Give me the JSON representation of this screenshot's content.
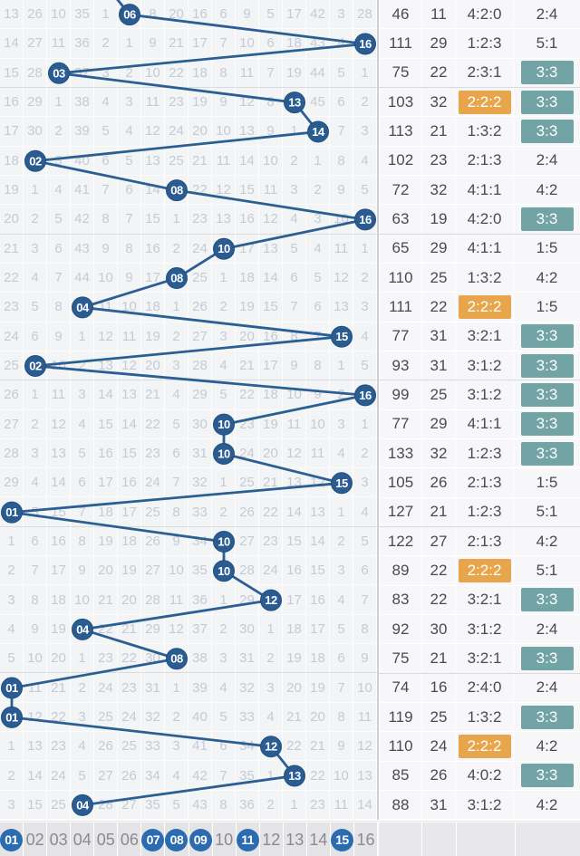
{
  "colors": {
    "line_blue": "#2b5f94",
    "circle_fill": "#2a5c92",
    "circle_stroke": "#1e4f7f",
    "legend_ball_blue": "#2b6cb0",
    "orange_hl": "#e7a64b",
    "teal_hl": "#72a3a5"
  },
  "chart_data": {
    "type": "table",
    "title": "lottery-trend-chart",
    "columns": [
      "01",
      "02",
      "03",
      "04",
      "05",
      "06",
      "07",
      "08",
      "09",
      "10",
      "11",
      "12",
      "13",
      "14",
      "15",
      "16"
    ],
    "prev_drawn_col": 5,
    "group_breaks": [
      3,
      8,
      13,
      18,
      23
    ],
    "rows": [
      {
        "ball": "06",
        "drawn_col": 6,
        "miss": [
          "13",
          "26",
          "10",
          "35",
          "1",
          "",
          "8",
          "20",
          "16",
          "6",
          "9",
          "5",
          "17",
          "42",
          "3",
          "28"
        ]
      },
      {
        "ball": "16",
        "drawn_col": 16,
        "miss": [
          "14",
          "27",
          "11",
          "36",
          "2",
          "1",
          "9",
          "21",
          "17",
          "7",
          "10",
          "6",
          "18",
          "43",
          "4",
          ""
        ]
      },
      {
        "ball": "03",
        "drawn_col": 3,
        "miss": [
          "15",
          "28",
          "",
          "37",
          "3",
          "2",
          "10",
          "22",
          "18",
          "8",
          "11",
          "7",
          "19",
          "44",
          "5",
          "1"
        ]
      },
      {
        "ball": "13",
        "drawn_col": 13,
        "miss": [
          "16",
          "29",
          "1",
          "38",
          "4",
          "3",
          "11",
          "23",
          "19",
          "9",
          "12",
          "8",
          "",
          "45",
          "6",
          "2"
        ]
      },
      {
        "ball": "14",
        "drawn_col": 14,
        "miss": [
          "17",
          "30",
          "2",
          "39",
          "5",
          "4",
          "12",
          "24",
          "20",
          "10",
          "13",
          "9",
          "1",
          "",
          "7",
          "3"
        ]
      },
      {
        "ball": "02",
        "drawn_col": 2,
        "miss": [
          "18",
          "",
          "3",
          "40",
          "6",
          "5",
          "13",
          "25",
          "21",
          "11",
          "14",
          "10",
          "2",
          "1",
          "8",
          "4"
        ]
      },
      {
        "ball": "08",
        "drawn_col": 8,
        "miss": [
          "19",
          "1",
          "4",
          "41",
          "7",
          "6",
          "14",
          "",
          "22",
          "12",
          "15",
          "11",
          "3",
          "2",
          "9",
          "5"
        ]
      },
      {
        "ball": "16",
        "drawn_col": 16,
        "miss": [
          "20",
          "2",
          "5",
          "42",
          "8",
          "7",
          "15",
          "1",
          "23",
          "13",
          "16",
          "12",
          "4",
          "3",
          "10",
          ""
        ]
      },
      {
        "ball": "10",
        "drawn_col": 10,
        "miss": [
          "21",
          "3",
          "6",
          "43",
          "9",
          "8",
          "16",
          "2",
          "24",
          "",
          "17",
          "13",
          "5",
          "4",
          "11",
          "1"
        ]
      },
      {
        "ball": "08",
        "drawn_col": 8,
        "miss": [
          "22",
          "4",
          "7",
          "44",
          "10",
          "9",
          "17",
          "",
          "25",
          "1",
          "18",
          "14",
          "6",
          "5",
          "12",
          "2"
        ]
      },
      {
        "ball": "04",
        "drawn_col": 4,
        "miss": [
          "23",
          "5",
          "8",
          "",
          "11",
          "10",
          "18",
          "1",
          "26",
          "2",
          "19",
          "15",
          "7",
          "6",
          "13",
          "3"
        ]
      },
      {
        "ball": "15",
        "drawn_col": 15,
        "miss": [
          "24",
          "6",
          "9",
          "1",
          "12",
          "11",
          "19",
          "2",
          "27",
          "3",
          "20",
          "16",
          "8",
          "7",
          "",
          "4"
        ]
      },
      {
        "ball": "02",
        "drawn_col": 2,
        "miss": [
          "25",
          "",
          "10",
          "2",
          "13",
          "12",
          "20",
          "3",
          "28",
          "4",
          "21",
          "17",
          "9",
          "8",
          "1",
          "5"
        ]
      },
      {
        "ball": "16",
        "drawn_col": 16,
        "miss": [
          "26",
          "1",
          "11",
          "3",
          "14",
          "13",
          "21",
          "4",
          "29",
          "5",
          "22",
          "18",
          "10",
          "9",
          "2",
          ""
        ]
      },
      {
        "ball": "10",
        "drawn_col": 10,
        "miss": [
          "27",
          "2",
          "12",
          "4",
          "15",
          "14",
          "22",
          "5",
          "30",
          "",
          "23",
          "19",
          "11",
          "10",
          "3",
          "1"
        ]
      },
      {
        "ball": "10",
        "drawn_col": 10,
        "miss": [
          "28",
          "3",
          "13",
          "5",
          "16",
          "15",
          "23",
          "6",
          "31",
          "",
          "24",
          "20",
          "12",
          "11",
          "4",
          "2"
        ]
      },
      {
        "ball": "15",
        "drawn_col": 15,
        "miss": [
          "29",
          "4",
          "14",
          "6",
          "17",
          "16",
          "24",
          "7",
          "32",
          "1",
          "25",
          "21",
          "13",
          "12",
          "",
          "3"
        ]
      },
      {
        "ball": "01",
        "drawn_col": 1,
        "miss": [
          "",
          "5",
          "15",
          "7",
          "18",
          "17",
          "25",
          "8",
          "33",
          "2",
          "26",
          "22",
          "14",
          "13",
          "1",
          "4"
        ]
      },
      {
        "ball": "10",
        "drawn_col": 10,
        "miss": [
          "1",
          "6",
          "16",
          "8",
          "19",
          "18",
          "26",
          "9",
          "34",
          "",
          "27",
          "23",
          "15",
          "14",
          "2",
          "5"
        ]
      },
      {
        "ball": "10",
        "drawn_col": 10,
        "miss": [
          "2",
          "7",
          "17",
          "9",
          "20",
          "19",
          "27",
          "10",
          "35",
          "",
          "28",
          "24",
          "16",
          "15",
          "3",
          "6"
        ]
      },
      {
        "ball": "12",
        "drawn_col": 12,
        "miss": [
          "3",
          "8",
          "18",
          "10",
          "21",
          "20",
          "28",
          "11",
          "36",
          "1",
          "29",
          "",
          "17",
          "16",
          "4",
          "7"
        ]
      },
      {
        "ball": "04",
        "drawn_col": 4,
        "miss": [
          "4",
          "9",
          "19",
          "",
          "22",
          "21",
          "29",
          "12",
          "37",
          "2",
          "30",
          "1",
          "18",
          "17",
          "5",
          "8"
        ]
      },
      {
        "ball": "08",
        "drawn_col": 8,
        "miss": [
          "5",
          "10",
          "20",
          "1",
          "23",
          "22",
          "30",
          "",
          "38",
          "3",
          "31",
          "2",
          "19",
          "18",
          "6",
          "9"
        ]
      },
      {
        "ball": "01",
        "drawn_col": 1,
        "miss": [
          "",
          "11",
          "21",
          "2",
          "24",
          "23",
          "31",
          "1",
          "39",
          "4",
          "32",
          "3",
          "20",
          "19",
          "7",
          "10"
        ]
      },
      {
        "ball": "01",
        "drawn_col": 1,
        "miss": [
          "",
          "12",
          "22",
          "3",
          "25",
          "24",
          "32",
          "2",
          "40",
          "5",
          "33",
          "4",
          "21",
          "20",
          "8",
          "11"
        ]
      },
      {
        "ball": "12",
        "drawn_col": 12,
        "miss": [
          "1",
          "13",
          "23",
          "4",
          "26",
          "25",
          "33",
          "3",
          "41",
          "6",
          "34",
          "",
          "22",
          "21",
          "9",
          "12"
        ]
      },
      {
        "ball": "13",
        "drawn_col": 13,
        "miss": [
          "2",
          "14",
          "24",
          "5",
          "27",
          "26",
          "34",
          "4",
          "42",
          "7",
          "35",
          "1",
          "",
          "22",
          "10",
          "13"
        ]
      },
      {
        "ball": "04",
        "drawn_col": 4,
        "miss": [
          "3",
          "15",
          "25",
          "",
          "28",
          "27",
          "35",
          "5",
          "43",
          "8",
          "36",
          "2",
          "1",
          "23",
          "11",
          "14"
        ]
      }
    ],
    "stats_rows": [
      {
        "sum": "46",
        "span": "11",
        "zone": "4:2:0",
        "oe": "2:4",
        "zone_hl": false,
        "oe_hl": false
      },
      {
        "sum": "111",
        "span": "29",
        "zone": "1:2:3",
        "oe": "5:1",
        "zone_hl": false,
        "oe_hl": false
      },
      {
        "sum": "75",
        "span": "22",
        "zone": "2:3:1",
        "oe": "3:3",
        "zone_hl": false,
        "oe_hl": true
      },
      {
        "sum": "103",
        "span": "32",
        "zone": "2:2:2",
        "oe": "3:3",
        "zone_hl": true,
        "oe_hl": true
      },
      {
        "sum": "113",
        "span": "21",
        "zone": "1:3:2",
        "oe": "3:3",
        "zone_hl": false,
        "oe_hl": true
      },
      {
        "sum": "102",
        "span": "23",
        "zone": "2:1:3",
        "oe": "2:4",
        "zone_hl": false,
        "oe_hl": false
      },
      {
        "sum": "72",
        "span": "32",
        "zone": "4:1:1",
        "oe": "4:2",
        "zone_hl": false,
        "oe_hl": false
      },
      {
        "sum": "63",
        "span": "19",
        "zone": "4:2:0",
        "oe": "3:3",
        "zone_hl": false,
        "oe_hl": true
      },
      {
        "sum": "65",
        "span": "29",
        "zone": "4:1:1",
        "oe": "1:5",
        "zone_hl": false,
        "oe_hl": false
      },
      {
        "sum": "110",
        "span": "25",
        "zone": "1:3:2",
        "oe": "4:2",
        "zone_hl": false,
        "oe_hl": false
      },
      {
        "sum": "111",
        "span": "22",
        "zone": "2:2:2",
        "oe": "1:5",
        "zone_hl": true,
        "oe_hl": false
      },
      {
        "sum": "77",
        "span": "31",
        "zone": "3:2:1",
        "oe": "3:3",
        "zone_hl": false,
        "oe_hl": true
      },
      {
        "sum": "93",
        "span": "31",
        "zone": "3:1:2",
        "oe": "3:3",
        "zone_hl": false,
        "oe_hl": true
      },
      {
        "sum": "99",
        "span": "25",
        "zone": "3:1:2",
        "oe": "3:3",
        "zone_hl": false,
        "oe_hl": true
      },
      {
        "sum": "77",
        "span": "29",
        "zone": "4:1:1",
        "oe": "3:3",
        "zone_hl": false,
        "oe_hl": true
      },
      {
        "sum": "133",
        "span": "32",
        "zone": "1:2:3",
        "oe": "3:3",
        "zone_hl": false,
        "oe_hl": true
      },
      {
        "sum": "105",
        "span": "26",
        "zone": "2:1:3",
        "oe": "1:5",
        "zone_hl": false,
        "oe_hl": false
      },
      {
        "sum": "127",
        "span": "21",
        "zone": "1:2:3",
        "oe": "5:1",
        "zone_hl": false,
        "oe_hl": false
      },
      {
        "sum": "122",
        "span": "27",
        "zone": "2:1:3",
        "oe": "4:2",
        "zone_hl": false,
        "oe_hl": false
      },
      {
        "sum": "89",
        "span": "22",
        "zone": "2:2:2",
        "oe": "5:1",
        "zone_hl": true,
        "oe_hl": false
      },
      {
        "sum": "83",
        "span": "22",
        "zone": "3:2:1",
        "oe": "3:3",
        "zone_hl": false,
        "oe_hl": true
      },
      {
        "sum": "92",
        "span": "30",
        "zone": "3:1:2",
        "oe": "2:4",
        "zone_hl": false,
        "oe_hl": false
      },
      {
        "sum": "75",
        "span": "21",
        "zone": "3:2:1",
        "oe": "3:3",
        "zone_hl": false,
        "oe_hl": true
      },
      {
        "sum": "74",
        "span": "16",
        "zone": "2:4:0",
        "oe": "2:4",
        "zone_hl": false,
        "oe_hl": false
      },
      {
        "sum": "119",
        "span": "25",
        "zone": "1:3:2",
        "oe": "3:3",
        "zone_hl": false,
        "oe_hl": true
      },
      {
        "sum": "110",
        "span": "24",
        "zone": "2:2:2",
        "oe": "4:2",
        "zone_hl": true,
        "oe_hl": false
      },
      {
        "sum": "85",
        "span": "26",
        "zone": "4:0:2",
        "oe": "3:3",
        "zone_hl": false,
        "oe_hl": true
      },
      {
        "sum": "88",
        "span": "31",
        "zone": "3:1:2",
        "oe": "4:2",
        "zone_hl": false,
        "oe_hl": false
      }
    ],
    "legend": {
      "numbers": [
        "01",
        "02",
        "03",
        "04",
        "05",
        "06",
        "07",
        "08",
        "09",
        "10",
        "11",
        "12",
        "13",
        "14",
        "15",
        "16"
      ],
      "drawn": [
        "01",
        "07",
        "08",
        "09",
        "11",
        "15"
      ]
    }
  }
}
